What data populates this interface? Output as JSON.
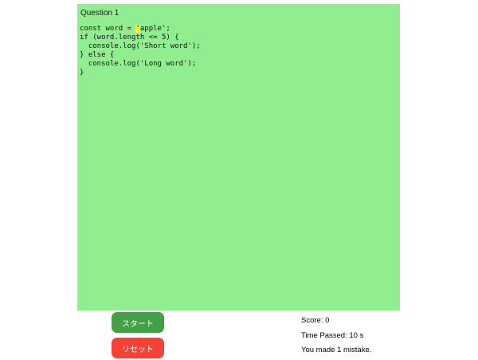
{
  "question": {
    "title": "Question 1",
    "code_before": "const word = ",
    "code_current_char": "'",
    "code_after": "apple';\nif (word.length <= 5) {\n  console.log('Short word');\n} else {\n  console.log('Long word');\n}"
  },
  "buttons": {
    "start_label": "スタート",
    "reset_label": "リセット"
  },
  "stats": {
    "score": "Score: 0",
    "time_passed": "Time Passed: 10 s",
    "mistakes": "You made 1 mistake."
  },
  "colors": {
    "page_bg": "#ffffff",
    "panel_bg": "#90ee90",
    "highlight_bg": "#ffeb3b",
    "start_button_bg": "#43a047",
    "reset_button_bg": "#f44336",
    "button_text": "#ffffff",
    "code_text": "#111111",
    "stats_text": "#000000"
  }
}
